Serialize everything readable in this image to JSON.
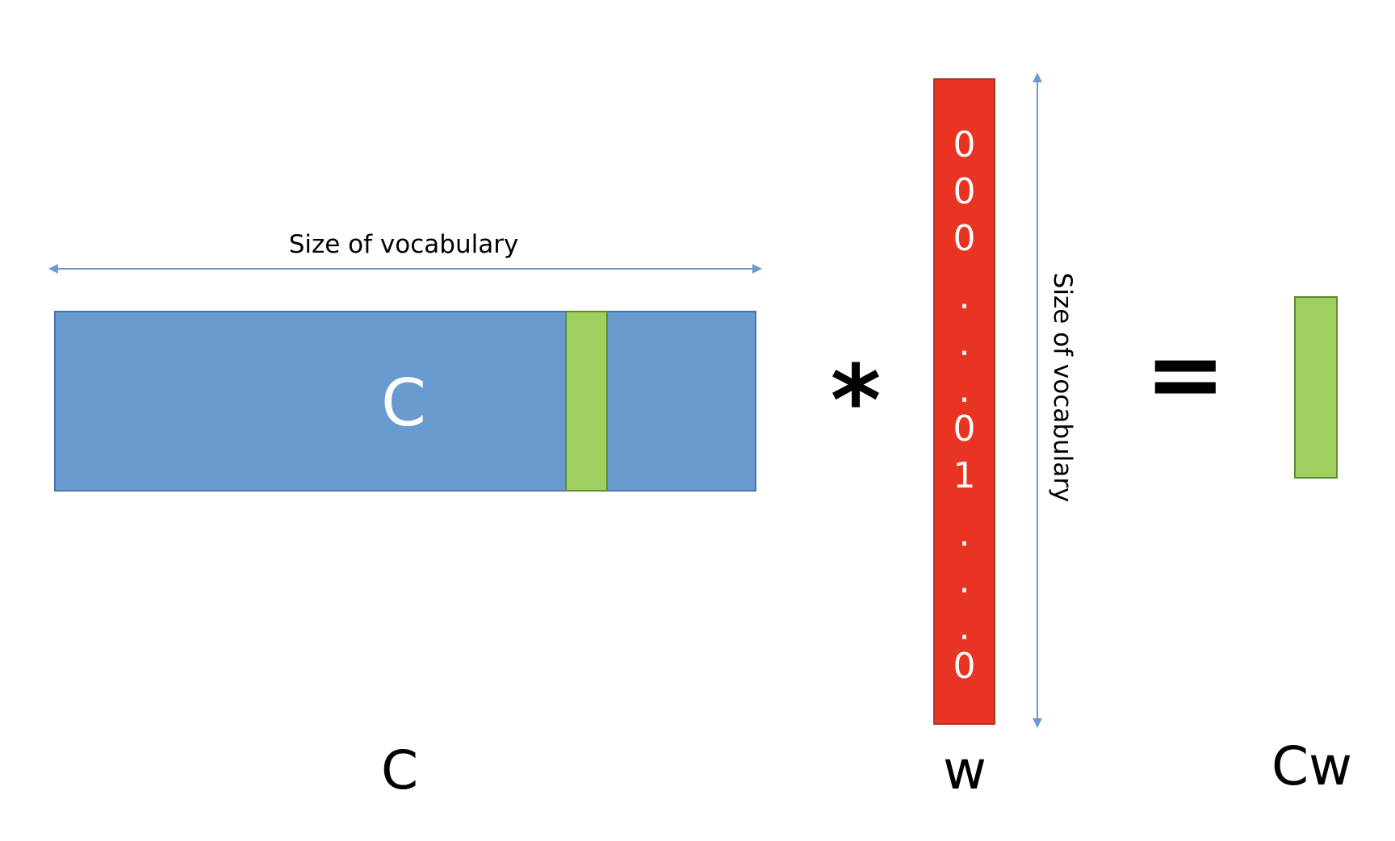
{
  "colors": {
    "matrix_blue": "#6a9bd0",
    "column_green": "#9fd05f",
    "vector_red": "#e93323",
    "arrow_blue": "#6a9bd0"
  },
  "matrix_c": {
    "inner_label": "C",
    "bottom_label": "C",
    "width_label": "Size of vocabulary"
  },
  "vector_w": {
    "entries": [
      "0",
      "0",
      "0",
      ".",
      ".",
      ".",
      "0",
      "1",
      ".",
      ".",
      ".",
      "0"
    ],
    "height_label": "Size of vocabulary",
    "bottom_label": "w"
  },
  "operators": {
    "multiply": "*",
    "equals": "="
  },
  "result": {
    "bottom_label": "Cw"
  }
}
